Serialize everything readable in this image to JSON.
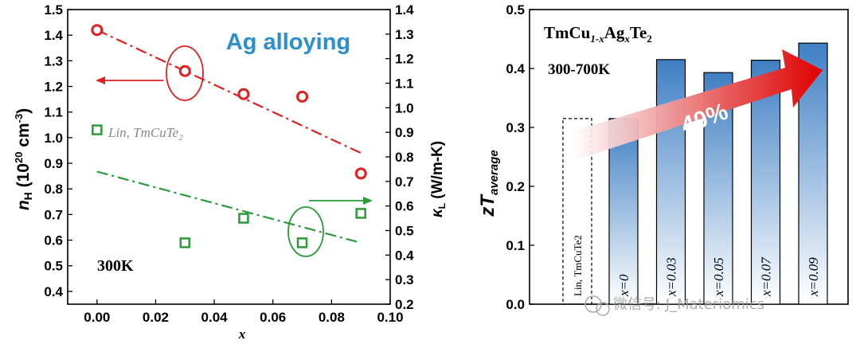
{
  "chart_data": [
    {
      "type": "scatter",
      "xlabel": "x",
      "ylabel_left": "n_H (10^20 cm^-3)",
      "ylabel_right": "κ_L (W/m-K)",
      "xlim": [
        -0.01,
        0.1
      ],
      "ylim_left": [
        0.35,
        1.5
      ],
      "ylim_right": [
        0.2,
        1.4
      ],
      "x_ticks": [
        "0.00",
        "0.02",
        "0.04",
        "0.06",
        "0.08",
        "0.10"
      ],
      "y_left_ticks": [
        "0.4",
        "0.5",
        "0.6",
        "0.7",
        "0.8",
        "0.9",
        "1.0",
        "1.1",
        "1.2",
        "1.3",
        "1.4",
        "1.5"
      ],
      "y_right_ticks": [
        "0.2",
        "0.3",
        "0.4",
        "0.5",
        "0.6",
        "0.7",
        "0.8",
        "0.9",
        "1.0",
        "1.1",
        "1.2",
        "1.3",
        "1.4"
      ],
      "annotation_title": "Ag alloying",
      "annotation_temp": "300K",
      "annotation_ref": "Lin, TmCuTe",
      "annotation_ref_sub": "2",
      "series": [
        {
          "name": "n_H",
          "axis": "left",
          "color": "#e02020",
          "marker": "circle",
          "points": [
            [
              0.0,
              1.42
            ],
            [
              0.03,
              1.26
            ],
            [
              0.05,
              1.17
            ],
            [
              0.07,
              1.16
            ],
            [
              0.09,
              0.86
            ]
          ],
          "trend": [
            [
              0.0,
              1.42
            ],
            [
              0.09,
              0.94
            ]
          ]
        },
        {
          "name": "κ_L",
          "axis": "right",
          "color": "#2a9a3a",
          "marker": "square",
          "points": [
            [
              0.03,
              0.45
            ],
            [
              0.05,
              0.55
            ],
            [
              0.07,
              0.45
            ],
            [
              0.09,
              0.57
            ]
          ],
          "reference_point": [
            0.0,
            0.91
          ],
          "trend": [
            [
              0.0,
              0.74
            ],
            [
              0.09,
              0.45
            ]
          ]
        }
      ]
    },
    {
      "type": "bar",
      "ylabel": "zT_average",
      "ylim": [
        0,
        0.5
      ],
      "y_ticks": [
        "0.0",
        "0.1",
        "0.2",
        "0.3",
        "0.4",
        "0.5"
      ],
      "title_main": "TmCu",
      "title_sub1": "1-x",
      "title_mid": "Ag",
      "title_sub2": "x",
      "title_end": "Te",
      "title_sub3": "2",
      "temp_range": "300-700K",
      "arrow_label": "40%",
      "reference_bar": {
        "label": "Lin, TmCuTe2",
        "value": 0.315
      },
      "categories": [
        "x=0",
        "x=0.03",
        "x=0.05",
        "x=0.07",
        "x=0.09"
      ],
      "values": [
        0.315,
        0.415,
        0.393,
        0.414,
        0.443
      ]
    }
  ],
  "watermark": "微信号: J_Materiomics"
}
